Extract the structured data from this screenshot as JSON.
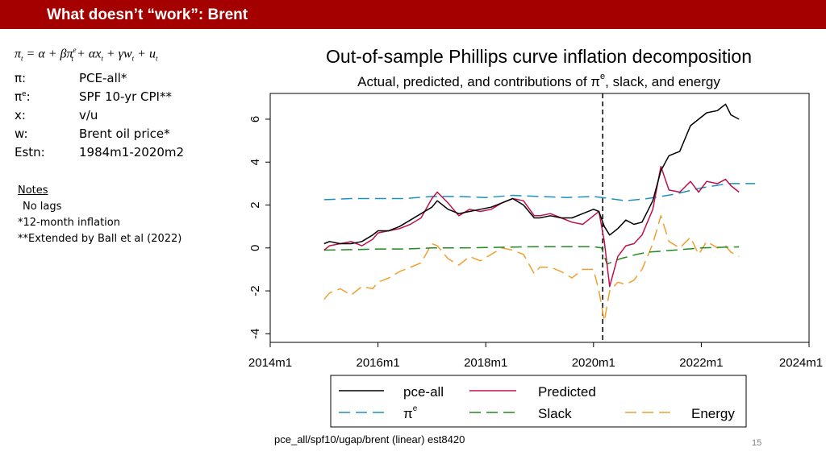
{
  "header": {
    "title": "What doesn’t “work”: Brent"
  },
  "equation": "π_t = α + βπ^e_t + αx_t + γw_t + u_t",
  "definitions": [
    {
      "symbol": "π:",
      "value": "PCE-all*"
    },
    {
      "symbol": "πe:",
      "value": "SPF 10-yr CPI**"
    },
    {
      "symbol": "x:",
      "value": "v/u"
    },
    {
      "symbol": "w:",
      "value": "Brent oil price*"
    },
    {
      "symbol": "Estn:",
      "value": "1984m1-2020m2"
    }
  ],
  "notes": {
    "title": "Notes",
    "lines": [
      "No lags",
      "*12-month inflation",
      "**Extended by Ball et al (2022)"
    ]
  },
  "footnote": "pce_all/spf10/ugap/brent (linear) est8420",
  "page_number": "15",
  "chart_data": {
    "type": "line",
    "title": "Out-of-sample Phillips curve inflation decomposition",
    "subtitle": "Actual, predicted, and contributions of πe, slack, and energy",
    "xlabel": "",
    "ylabel": "",
    "x_ticks": [
      "2014m1",
      "2016m1",
      "2018m1",
      "2020m1",
      "2022m1",
      "2024m1"
    ],
    "y_ticks": [
      -4,
      -2,
      0,
      2,
      4,
      6
    ],
    "xlim": [
      2014.0,
      2024.0
    ],
    "ylim": [
      -4.4,
      7.2
    ],
    "vline": {
      "x": 2020.17,
      "style": "dashed"
    },
    "legend_position": "bottom",
    "series": [
      {
        "name": "pce-all",
        "color": "#000000",
        "dash": "solid",
        "x": [
          2015.0,
          2015.1,
          2015.3,
          2015.5,
          2015.7,
          2015.9,
          2016.0,
          2016.2,
          2016.4,
          2016.6,
          2016.8,
          2017.0,
          2017.1,
          2017.3,
          2017.5,
          2017.7,
          2017.9,
          2018.1,
          2018.3,
          2018.5,
          2018.7,
          2018.9,
          2019.0,
          2019.2,
          2019.4,
          2019.6,
          2019.8,
          2020.0,
          2020.1,
          2020.2,
          2020.3,
          2020.45,
          2020.6,
          2020.75,
          2020.9,
          2021.1,
          2021.25,
          2021.4,
          2021.6,
          2021.8,
          2021.95,
          2022.1,
          2022.3,
          2022.45,
          2022.55,
          2022.7
        ],
        "values": [
          0.2,
          0.3,
          0.2,
          0.2,
          0.3,
          0.6,
          0.8,
          0.8,
          1.0,
          1.3,
          1.6,
          1.9,
          2.2,
          1.8,
          1.6,
          1.7,
          1.8,
          1.9,
          2.1,
          2.3,
          2.0,
          1.4,
          1.4,
          1.5,
          1.4,
          1.4,
          1.6,
          1.8,
          1.7,
          1.0,
          0.6,
          0.9,
          1.3,
          1.1,
          1.2,
          2.2,
          3.6,
          4.3,
          4.5,
          5.7,
          6.0,
          6.3,
          6.4,
          6.7,
          6.2,
          6.0
        ]
      },
      {
        "name": "Predicted",
        "color": "#c0104a",
        "dash": "solid",
        "x": [
          2015.0,
          2015.1,
          2015.3,
          2015.5,
          2015.7,
          2015.9,
          2016.0,
          2016.2,
          2016.4,
          2016.6,
          2016.8,
          2017.0,
          2017.1,
          2017.3,
          2017.5,
          2017.7,
          2017.9,
          2018.1,
          2018.3,
          2018.5,
          2018.7,
          2018.9,
          2019.0,
          2019.2,
          2019.4,
          2019.6,
          2019.8,
          2020.0,
          2020.1,
          2020.2,
          2020.3,
          2020.45,
          2020.6,
          2020.75,
          2020.9,
          2021.1,
          2021.25,
          2021.4,
          2021.6,
          2021.8,
          2021.95,
          2022.1,
          2022.3,
          2022.45,
          2022.55,
          2022.7
        ],
        "values": [
          -0.1,
          0.1,
          0.2,
          0.3,
          0.1,
          0.4,
          0.7,
          0.8,
          0.9,
          1.1,
          1.4,
          2.3,
          2.6,
          2.1,
          1.5,
          1.8,
          1.7,
          1.8,
          2.1,
          2.3,
          2.2,
          1.5,
          1.5,
          1.6,
          1.4,
          1.2,
          1.1,
          1.5,
          1.7,
          0.3,
          -1.8,
          -0.4,
          0.1,
          0.2,
          0.6,
          1.8,
          3.8,
          2.7,
          2.6,
          3.1,
          2.6,
          3.1,
          3.0,
          3.2,
          2.9,
          2.6
        ]
      },
      {
        "name": "πe",
        "color": "#1a91c0",
        "dash": "longdash",
        "x": [
          2015.0,
          2015.5,
          2016.0,
          2016.5,
          2017.0,
          2017.5,
          2018.0,
          2018.5,
          2019.0,
          2019.5,
          2020.0,
          2020.3,
          2020.6,
          2021.0,
          2021.5,
          2022.0,
          2022.5,
          2023.0
        ],
        "values": [
          2.25,
          2.3,
          2.3,
          2.3,
          2.4,
          2.4,
          2.35,
          2.45,
          2.4,
          2.35,
          2.4,
          2.3,
          2.2,
          2.3,
          2.5,
          2.8,
          3.0,
          3.0
        ]
      },
      {
        "name": "Slack",
        "color": "#1f8a1f",
        "dash": "longdash",
        "x": [
          2015.0,
          2015.5,
          2016.0,
          2016.5,
          2017.0,
          2017.5,
          2018.0,
          2018.5,
          2019.0,
          2019.5,
          2020.0,
          2020.15,
          2020.25,
          2020.5,
          2020.8,
          2021.0,
          2021.5,
          2022.0,
          2022.5,
          2022.7
        ],
        "values": [
          -0.1,
          -0.08,
          -0.05,
          -0.05,
          0.0,
          0.0,
          0.02,
          0.04,
          0.06,
          0.06,
          0.06,
          0.0,
          -0.75,
          -0.5,
          -0.3,
          -0.2,
          -0.1,
          0.0,
          0.04,
          0.05
        ]
      },
      {
        "name": "Energy",
        "color": "#f0a030",
        "dash": "longdash",
        "x": [
          2015.0,
          2015.1,
          2015.3,
          2015.5,
          2015.7,
          2015.9,
          2016.0,
          2016.2,
          2016.4,
          2016.6,
          2016.8,
          2017.0,
          2017.1,
          2017.3,
          2017.5,
          2017.7,
          2017.9,
          2018.1,
          2018.3,
          2018.5,
          2018.7,
          2018.9,
          2019.0,
          2019.2,
          2019.4,
          2019.6,
          2019.8,
          2020.0,
          2020.1,
          2020.2,
          2020.3,
          2020.45,
          2020.6,
          2020.75,
          2020.9,
          2021.1,
          2021.25,
          2021.4,
          2021.6,
          2021.8,
          2021.95,
          2022.1,
          2022.3,
          2022.45,
          2022.55,
          2022.7
        ],
        "values": [
          -2.4,
          -2.1,
          -1.9,
          -2.2,
          -1.8,
          -1.9,
          -1.6,
          -1.4,
          -1.1,
          -0.9,
          -0.7,
          0.2,
          0.1,
          -0.5,
          -0.8,
          -0.4,
          -0.6,
          -0.3,
          0.0,
          -0.1,
          -0.3,
          -1.2,
          -0.9,
          -0.9,
          -1.1,
          -1.4,
          -1.0,
          -1.0,
          -2.0,
          -3.4,
          -2.0,
          -1.6,
          -1.7,
          -1.5,
          -1.0,
          0.2,
          1.5,
          0.3,
          0.0,
          0.5,
          -0.3,
          0.3,
          0.0,
          0.1,
          -0.2,
          -0.4
        ]
      }
    ]
  }
}
